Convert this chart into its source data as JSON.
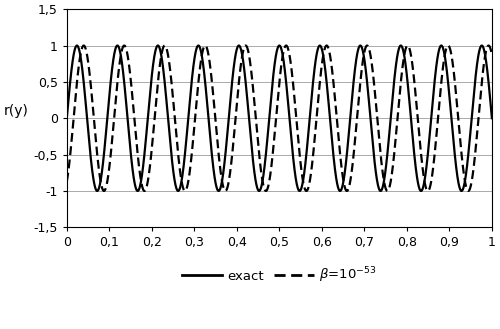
{
  "title": "",
  "xlabel": "",
  "ylabel": "r(y)",
  "xlim": [
    0,
    1
  ],
  "ylim": [
    -1.5,
    1.5
  ],
  "yticks": [
    -1.5,
    -1,
    -0.5,
    0,
    0.5,
    1,
    1.5
  ],
  "ytick_labels": [
    "-1,5",
    "-1",
    "-0,5",
    "0",
    "0,5",
    "1",
    "1,5"
  ],
  "xticks": [
    0,
    0.1,
    0.2,
    0.3,
    0.4,
    0.5,
    0.6,
    0.7,
    0.8,
    0.9,
    1
  ],
  "xtick_labels": [
    "0",
    "0,1",
    "0,2",
    "0,3",
    "0,4",
    "0,5",
    "0,6",
    "0,7",
    "0,8",
    "0,9",
    "1"
  ],
  "grid_y_values": [
    -1,
    -0.5,
    0,
    0.5,
    1
  ],
  "n_points": 3000,
  "frequency": 21,
  "phase_shift": 0.016,
  "exact_color": "#000000",
  "approx_color": "#000000",
  "exact_linewidth": 1.6,
  "approx_linewidth": 1.6,
  "legend_exact": "exact",
  "background_color": "#ffffff",
  "figsize": [
    5.0,
    3.29
  ],
  "dpi": 100
}
